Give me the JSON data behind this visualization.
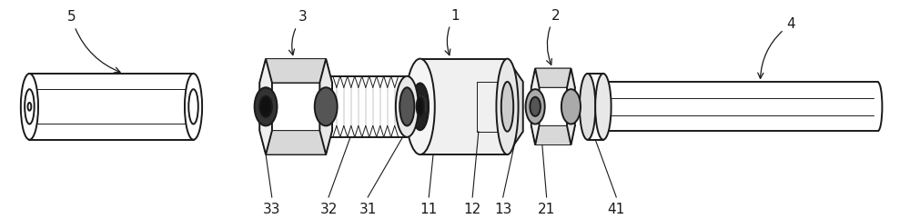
{
  "bg_color": "#ffffff",
  "line_color": "#1a1a1a",
  "lw": 1.4,
  "lw_thin": 0.7,
  "font_size": 11
}
